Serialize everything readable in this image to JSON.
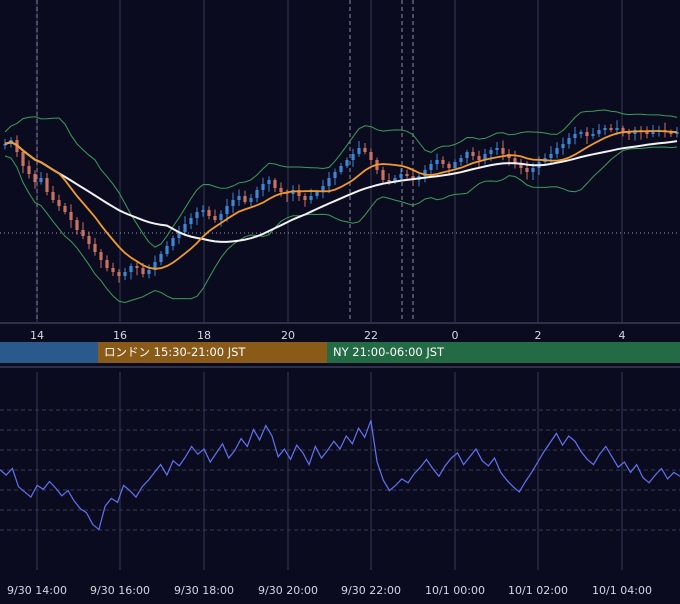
{
  "colors": {
    "background": "#0b0b20",
    "candle_up": "#3d86d4",
    "candle_down": "#c97262",
    "ma_short": "#f29b2b",
    "ma_long": "#f2f2f2",
    "bollinger": "#3b9e57",
    "oscillator": "#6272f0",
    "grid": "#363a55",
    "tick_text": "#d6d6e0"
  },
  "sessions": [
    {
      "label": "",
      "color": "#2a5a8c"
    },
    {
      "label": "ロンドン 15:30-21:00 JST",
      "color": "#8a5a18"
    },
    {
      "label": "NY 21:00-06:00 JST",
      "color": "#236b45"
    }
  ],
  "chart_data": [
    {
      "type": "candlestick",
      "title": "",
      "x_ticks": [
        "14",
        "16",
        "18",
        "20",
        "22",
        "0",
        "2",
        "4"
      ],
      "grid": "vertical solid at hour ticks, dashed session markers, horizontal dotted reference line",
      "series": [
        {
          "values": [
            0.74,
            0.76,
            0.7,
            0.63,
            0.59,
            0.55,
            0.57,
            0.5,
            0.46,
            0.43,
            0.4,
            0.36,
            0.31,
            0.28,
            0.24,
            0.2,
            0.16,
            0.12,
            0.1,
            0.08,
            0.1,
            0.13,
            0.12,
            0.09,
            0.11,
            0.15,
            0.19,
            0.23,
            0.27,
            0.3,
            0.34,
            0.37,
            0.4,
            0.41,
            0.38,
            0.36,
            0.39,
            0.43,
            0.46,
            0.48,
            0.45,
            0.47,
            0.51,
            0.54,
            0.56,
            0.52,
            0.5,
            0.49,
            0.51,
            0.48,
            0.46,
            0.48,
            0.5,
            0.53,
            0.57,
            0.6,
            0.63,
            0.66,
            0.69,
            0.72,
            0.7,
            0.66,
            0.61,
            0.56,
            0.55,
            0.57,
            0.59,
            0.58,
            0.56,
            0.58,
            0.61,
            0.64,
            0.66,
            0.64,
            0.62,
            0.65,
            0.67,
            0.7,
            0.68,
            0.66,
            0.69,
            0.71,
            0.72,
            0.69,
            0.67,
            0.64,
            0.62,
            0.6,
            0.62,
            0.65,
            0.67,
            0.69,
            0.72,
            0.74,
            0.77,
            0.79,
            0.8,
            0.78,
            0.79,
            0.81,
            0.82,
            0.81,
            0.82,
            0.8,
            0.79,
            0.81,
            0.8,
            0.79,
            0.8,
            0.81,
            0.8,
            0.79,
            0.8
          ]
        }
      ]
    },
    {
      "type": "line",
      "title": "",
      "x_ticks": [
        "9/30 14:00",
        "9/30 16:00",
        "9/30 18:00",
        "9/30 20:00",
        "9/30 22:00",
        "10/1 00:00",
        "10/1 02:00",
        "10/1 04:00"
      ],
      "grid": "dashed horizontal lines",
      "series": [
        {
          "values": [
            0.54,
            0.5,
            0.55,
            0.41,
            0.37,
            0.33,
            0.42,
            0.39,
            0.45,
            0.4,
            0.34,
            0.38,
            0.3,
            0.24,
            0.21,
            0.12,
            0.08,
            0.26,
            0.32,
            0.29,
            0.42,
            0.38,
            0.33,
            0.41,
            0.46,
            0.52,
            0.58,
            0.5,
            0.61,
            0.57,
            0.64,
            0.72,
            0.66,
            0.7,
            0.6,
            0.67,
            0.74,
            0.63,
            0.69,
            0.78,
            0.72,
            0.85,
            0.77,
            0.88,
            0.8,
            0.64,
            0.7,
            0.62,
            0.73,
            0.67,
            0.58,
            0.72,
            0.63,
            0.69,
            0.76,
            0.7,
            0.8,
            0.74,
            0.86,
            0.79,
            0.92,
            0.6,
            0.46,
            0.38,
            0.42,
            0.47,
            0.44,
            0.51,
            0.56,
            0.62,
            0.55,
            0.49,
            0.57,
            0.63,
            0.67,
            0.58,
            0.64,
            0.7,
            0.61,
            0.57,
            0.63,
            0.52,
            0.46,
            0.41,
            0.37,
            0.45,
            0.52,
            0.6,
            0.68,
            0.75,
            0.82,
            0.73,
            0.8,
            0.76,
            0.68,
            0.62,
            0.58,
            0.66,
            0.72,
            0.64,
            0.56,
            0.6,
            0.52,
            0.58,
            0.48,
            0.44,
            0.5,
            0.55,
            0.47,
            0.52,
            0.49
          ]
        }
      ]
    }
  ]
}
